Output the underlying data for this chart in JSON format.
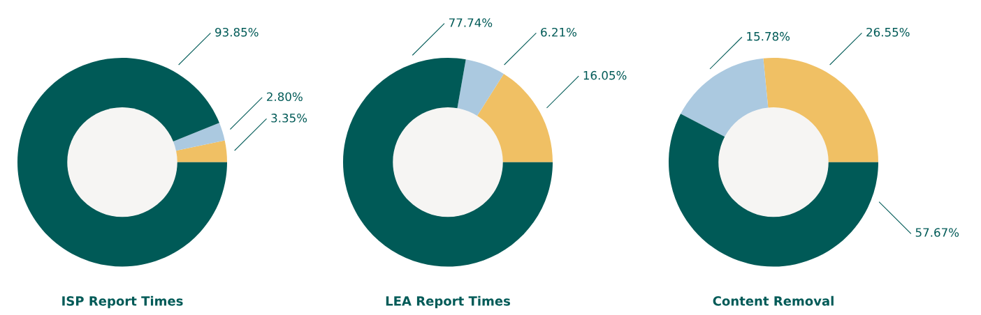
{
  "chart_data": [
    {
      "type": "donut",
      "title": "ISP Report Times",
      "categories": [
        null,
        null,
        null
      ],
      "values": [
        3.35,
        2.8,
        93.85
      ],
      "colors": [
        "#f0c064",
        "#abc9e0",
        "#005a57"
      ],
      "value_labels": [
        "3.35%",
        "2.80%",
        "93.85%"
      ]
    },
    {
      "type": "donut",
      "title": "LEA Report Times",
      "categories": [
        null,
        null,
        null
      ],
      "values": [
        16.05,
        6.21,
        77.74
      ],
      "colors": [
        "#f0c064",
        "#abc9e0",
        "#005a57"
      ],
      "value_labels": [
        "16.05%",
        "6.21%",
        "77.74%"
      ]
    },
    {
      "type": "donut",
      "title": "Content Removal",
      "categories": [
        null,
        null,
        null
      ],
      "values": [
        26.55,
        15.78,
        57.67
      ],
      "colors": [
        "#f0c064",
        "#abc9e0",
        "#005a57"
      ],
      "value_labels": [
        "26.55%",
        "15.78%",
        "57.67%"
      ]
    }
  ]
}
